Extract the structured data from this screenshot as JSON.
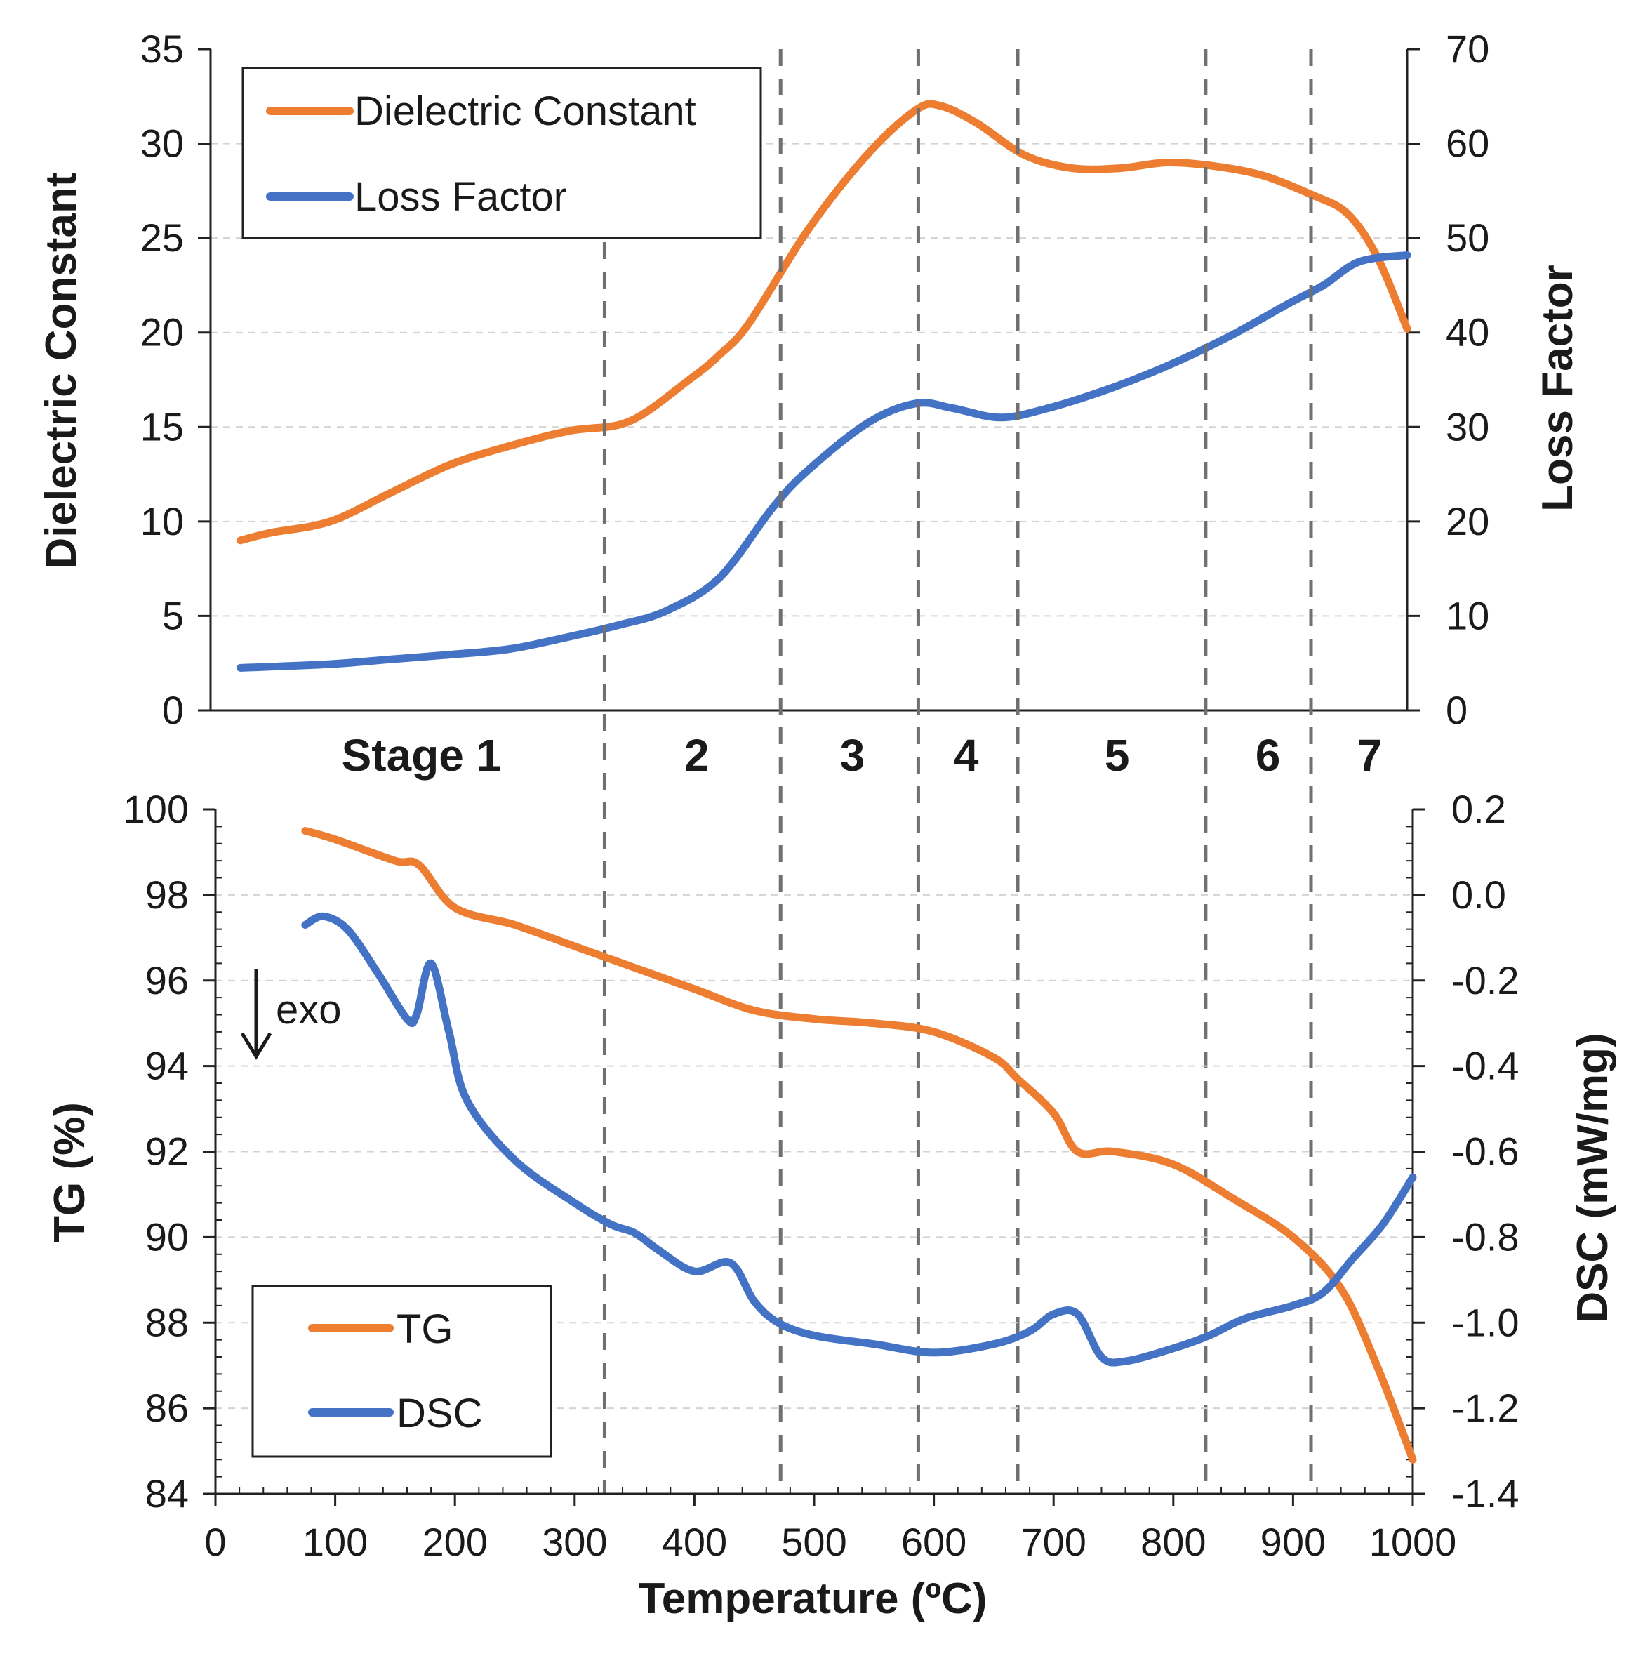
{
  "chart_data": [
    {
      "type": "line",
      "panel": "top",
      "ylabel": "Dielectric Constant",
      "y2label": "Loss Factor",
      "xlim": [
        0,
        1000
      ],
      "ylim": [
        0,
        35
      ],
      "y2lim": [
        0,
        70
      ],
      "yticks": [
        "0",
        "5",
        "10",
        "15",
        "20",
        "25",
        "30",
        "35"
      ],
      "y2ticks": [
        "0",
        "10",
        "20",
        "30",
        "40",
        "50",
        "60",
        "70"
      ],
      "grid": true,
      "legend": "top-left",
      "series": [
        {
          "name": "Dielectric Constant",
          "axis": "left",
          "color": "#ED7D31",
          "x": [
            25,
            50,
            100,
            150,
            200,
            250,
            300,
            350,
            400,
            425,
            450,
            500,
            550,
            590,
            610,
            640,
            680,
            720,
            760,
            800,
            840,
            880,
            920,
            950,
            975,
            1000
          ],
          "y": [
            9.0,
            9.4,
            10.0,
            11.5,
            13.0,
            14.0,
            14.8,
            15.3,
            17.5,
            18.8,
            20.5,
            25.5,
            29.5,
            31.8,
            32.0,
            31.1,
            29.4,
            28.7,
            28.7,
            29.0,
            28.8,
            28.3,
            27.3,
            26.3,
            24.0,
            20.2
          ]
        },
        {
          "name": "Loss Factor",
          "axis": "right",
          "color": "#4472C4",
          "x": [
            25,
            100,
            150,
            200,
            250,
            300,
            340,
            380,
            425,
            470,
            500,
            550,
            590,
            620,
            660,
            700,
            750,
            800,
            850,
            900,
            930,
            960,
            1000
          ],
          "y": [
            4.5,
            4.9,
            5.4,
            5.9,
            6.5,
            7.8,
            9.0,
            10.5,
            14.0,
            21.5,
            25.5,
            30.5,
            32.5,
            32.0,
            31.0,
            32.0,
            34.0,
            36.5,
            39.5,
            43.0,
            45.0,
            47.5,
            48.2
          ]
        }
      ]
    },
    {
      "type": "line",
      "panel": "bottom",
      "xlabel": "Temperature (ºC)",
      "ylabel": "TG (%)",
      "y2label": "DSC (mW/mg)",
      "xlim": [
        0,
        1000
      ],
      "ylim": [
        84,
        100
      ],
      "y2lim": [
        -1.4,
        0.2
      ],
      "xticks": [
        "0",
        "100",
        "200",
        "300",
        "400",
        "500",
        "600",
        "700",
        "800",
        "900",
        "1000"
      ],
      "yticks": [
        "84",
        "86",
        "88",
        "90",
        "92",
        "94",
        "96",
        "98",
        "100"
      ],
      "y2ticks": [
        "-1.4",
        "-1.2",
        "-1.0",
        "-0.8",
        "-0.6",
        "-0.4",
        "-0.2",
        "0.0",
        "0.2"
      ],
      "grid": true,
      "legend": "bottom-left",
      "annotation": "exo",
      "series": [
        {
          "name": "TG",
          "axis": "left",
          "color": "#ED7D31",
          "x": [
            75,
            100,
            150,
            170,
            200,
            250,
            300,
            350,
            400,
            450,
            500,
            550,
            600,
            650,
            670,
            700,
            720,
            750,
            800,
            850,
            900,
            940,
            970,
            1000
          ],
          "y": [
            99.5,
            99.3,
            98.8,
            98.7,
            97.7,
            97.3,
            96.8,
            96.3,
            95.8,
            95.3,
            95.1,
            95.0,
            94.8,
            94.2,
            93.7,
            92.9,
            92.0,
            92.0,
            91.7,
            90.9,
            90.0,
            88.8,
            87.0,
            84.8
          ]
        },
        {
          "name": "DSC",
          "axis": "right",
          "color": "#4472C4",
          "x": [
            75,
            90,
            110,
            135,
            160,
            168,
            180,
            195,
            210,
            250,
            300,
            330,
            350,
            370,
            400,
            430,
            450,
            470,
            500,
            550,
            600,
            650,
            680,
            700,
            720,
            740,
            760,
            800,
            830,
            860,
            900,
            925,
            950,
            975,
            1000
          ],
          "y": [
            -0.07,
            -0.05,
            -0.08,
            -0.18,
            -0.29,
            -0.28,
            -0.16,
            -0.32,
            -0.48,
            -0.62,
            -0.72,
            -0.77,
            -0.79,
            -0.83,
            -0.88,
            -0.86,
            -0.95,
            -1.0,
            -1.03,
            -1.05,
            -1.07,
            -1.05,
            -1.02,
            -0.98,
            -0.98,
            -1.08,
            -1.09,
            -1.06,
            -1.03,
            -0.99,
            -0.96,
            -0.93,
            -0.85,
            -0.77,
            -0.66
          ]
        }
      ]
    }
  ],
  "stages": {
    "boundaries": [
      325,
      472,
      587,
      670,
      827,
      915
    ],
    "labels": [
      "Stage 1",
      "2",
      "3",
      "4",
      "5",
      "6",
      "7"
    ],
    "label_centers": [
      172,
      402,
      532,
      627,
      753,
      879,
      964
    ]
  },
  "colors": {
    "orange": "#ED7D31",
    "blue": "#4472C4",
    "divider": "#707070",
    "grid": "#D3D3D3",
    "axis": "#222222"
  }
}
